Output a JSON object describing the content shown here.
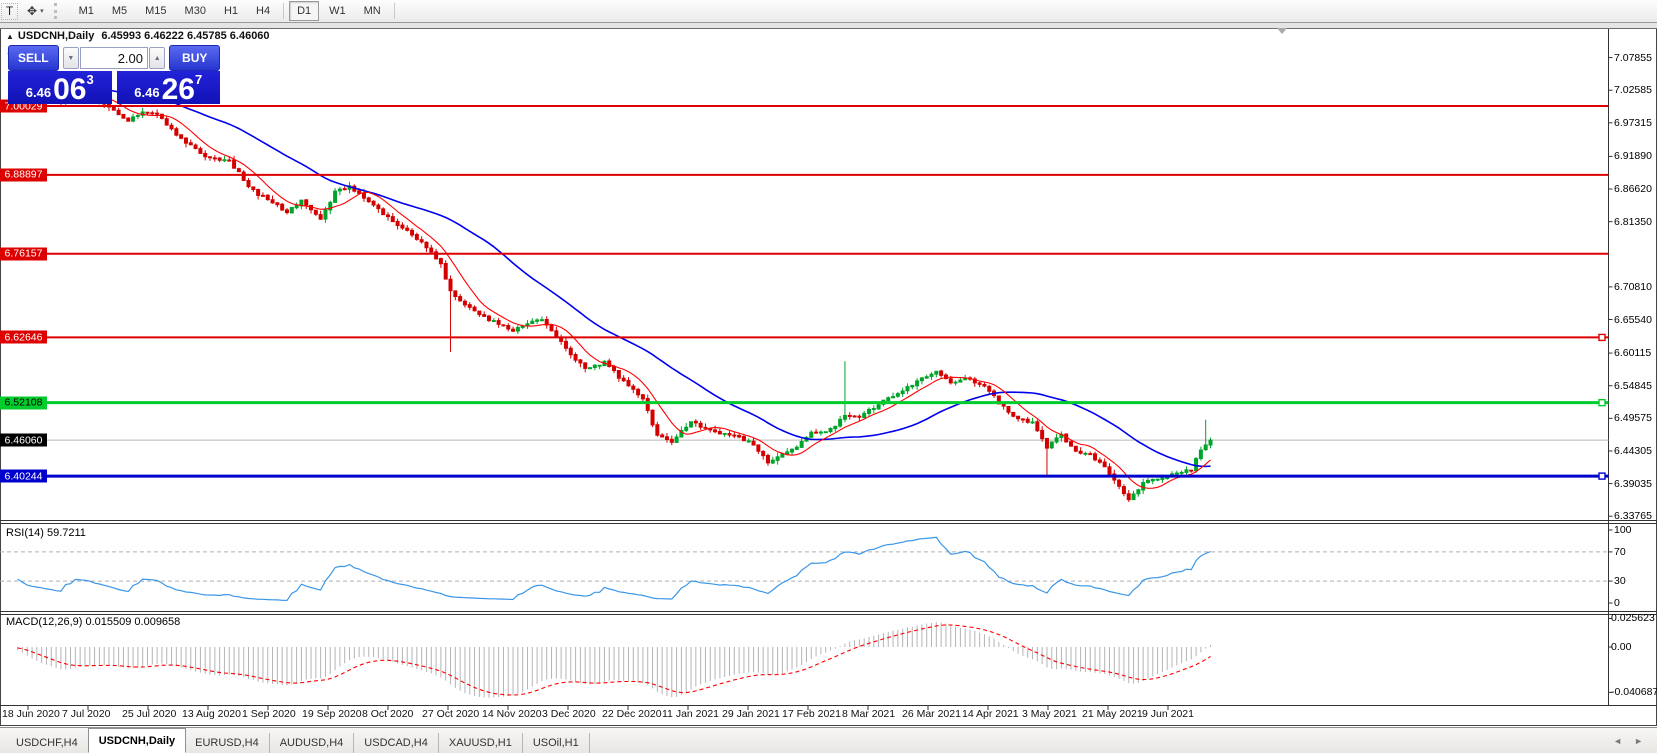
{
  "toolbar": {
    "text_tool_label": "T",
    "cursor_tool_glyph": "✥",
    "caret": "▾",
    "timeframes": [
      "M1",
      "M5",
      "M15",
      "M30",
      "H1",
      "H4",
      "D1",
      "W1",
      "MN"
    ],
    "active_timeframe": "D1"
  },
  "chart": {
    "title": "USDCNH,Daily",
    "ohlc_text": "6.45993 6.46222 6.45785 6.46060",
    "collapse_glyph": "▲"
  },
  "trade_panel": {
    "sell_label": "SELL",
    "buy_label": "BUY",
    "volume": "2.00",
    "spin_down_glyph": "▼",
    "spin_up_glyph": "▲",
    "sell_price_small": "6.46",
    "sell_price_big": "06",
    "sell_price_sup": "3",
    "buy_price_small": "6.46",
    "buy_price_big": "26",
    "buy_price_sup": "7"
  },
  "tabs": {
    "items": [
      "USDCHF,H4",
      "USDCNH,Daily",
      "EURUSD,H4",
      "AUDUSD,H4",
      "USDCAD,H4",
      "XAUUSD,H1",
      "USOil,H1"
    ],
    "active": "USDCNH,Daily",
    "scroll_left_glyph": "◄",
    "scroll_right_glyph": "►"
  },
  "chart_data": {
    "type": "candlestick",
    "symbol": "USDCNH",
    "timeframe": "Daily",
    "ohlc": {
      "open": 6.45993,
      "high": 6.46222,
      "low": 6.45785,
      "close": 6.4606
    },
    "price_axis_ticks": [
      7.07855,
      7.02585,
      6.97315,
      6.9189,
      6.8662,
      6.8135,
      6.7081,
      6.6554,
      6.60115,
      6.54845,
      6.49575,
      6.44305,
      6.39035,
      6.33765
    ],
    "hlines": [
      {
        "value": 7.00029,
        "color": "#dd0000",
        "text_color": "#ffffff",
        "width": 2,
        "handles": false
      },
      {
        "value": 6.88897,
        "color": "#dd0000",
        "text_color": "#ffffff",
        "width": 2,
        "handles": false
      },
      {
        "value": 6.76157,
        "color": "#dd0000",
        "text_color": "#ffffff",
        "width": 2,
        "handles": false
      },
      {
        "value": 6.62646,
        "color": "#dd0000",
        "text_color": "#ffffff",
        "width": 2,
        "handles": true
      },
      {
        "value": 6.52108,
        "color": "#00cc2c",
        "text_color": "#000000",
        "width": 3,
        "handles": true
      },
      {
        "value": 6.40244,
        "color": "#0000cc",
        "text_color": "#ffffff",
        "width": 3,
        "handles": true
      }
    ],
    "current_price": 6.4606,
    "dates": [
      "18 Jun 2020",
      "7 Jul 2020",
      "25 Jul 2020",
      "13 Aug 2020",
      "1 Sep 2020",
      "19 Sep 2020",
      "8 Oct 2020",
      "27 Oct 2020",
      "14 Nov 2020",
      "3 Dec 2020",
      "22 Dec 2020",
      "11 Jan 2021",
      "29 Jan 2021",
      "17 Feb 2021",
      "8 Mar 2021",
      "26 Mar 2021",
      "14 Apr 2021",
      "3 May 2021",
      "21 May 2021",
      "9 Jun 2021"
    ],
    "close_path": [
      [
        0,
        7.085
      ],
      [
        4,
        7.04
      ],
      [
        8,
        7.018
      ],
      [
        11,
        7.006
      ],
      [
        14,
        7.024
      ],
      [
        19,
        7.009
      ],
      [
        25,
        6.976
      ],
      [
        28,
        6.993
      ],
      [
        31,
        6.989
      ],
      [
        35,
        6.953
      ],
      [
        41,
        6.919
      ],
      [
        46,
        6.911
      ],
      [
        51,
        6.863
      ],
      [
        58,
        6.829
      ],
      [
        61,
        6.847
      ],
      [
        65,
        6.815
      ],
      [
        68,
        6.861
      ],
      [
        71,
        6.87
      ],
      [
        75,
        6.844
      ],
      [
        80,
        6.815
      ],
      [
        86,
        6.779
      ],
      [
        90,
        6.745
      ],
      [
        92,
        6.701
      ],
      [
        96,
        6.673
      ],
      [
        100,
        6.655
      ],
      [
        105,
        6.639
      ],
      [
        111,
        6.657
      ],
      [
        116,
        6.609
      ],
      [
        120,
        6.575
      ],
      [
        124,
        6.587
      ],
      [
        128,
        6.554
      ],
      [
        132,
        6.529
      ],
      [
        135,
        6.466
      ],
      [
        138,
        6.459
      ],
      [
        142,
        6.491
      ],
      [
        146,
        6.475
      ],
      [
        150,
        6.469
      ],
      [
        154,
        6.459
      ],
      [
        158,
        6.425
      ],
      [
        163,
        6.445
      ],
      [
        167,
        6.471
      ],
      [
        171,
        6.477
      ],
      [
        174,
        6.501
      ],
      [
        177,
        6.499
      ],
      [
        181,
        6.519
      ],
      [
        185,
        6.537
      ],
      [
        190,
        6.559
      ],
      [
        193,
        6.571
      ],
      [
        196,
        6.554
      ],
      [
        199,
        6.561
      ],
      [
        203,
        6.549
      ],
      [
        206,
        6.521
      ],
      [
        209,
        6.499
      ],
      [
        213,
        6.489
      ],
      [
        216,
        6.449
      ],
      [
        219,
        6.469
      ],
      [
        222,
        6.441
      ],
      [
        225,
        6.437
      ],
      [
        228,
        6.419
      ],
      [
        231,
        6.385
      ],
      [
        233,
        6.363
      ],
      [
        236,
        6.391
      ],
      [
        240,
        6.401
      ],
      [
        243,
        6.405
      ],
      [
        246,
        6.413
      ],
      [
        248,
        6.445
      ],
      [
        250,
        6.4606
      ]
    ],
    "special_wicks": [
      {
        "i": 92,
        "low": 6.603
      },
      {
        "i": 174,
        "high": 6.588
      },
      {
        "i": 216,
        "low": 6.403
      },
      {
        "i": 249,
        "high": 6.4935
      }
    ],
    "indicators": {
      "rsi": {
        "label": "RSI(14) 59.7211",
        "period": 14,
        "value": 59.7211,
        "axis": [
          100,
          70,
          30,
          0
        ],
        "guides": [
          70,
          30
        ]
      },
      "macd": {
        "label": "MACD(12,26,9) 0.015509 0.009658",
        "macd_value": 0.015509,
        "signal_value": 0.009658,
        "axis": [
          {
            "v": 0.025623,
            "t": "0.025623"
          },
          {
            "v": 0,
            "t": "0.00"
          },
          {
            "v": -0.040687,
            "t": "-0.040687"
          }
        ]
      }
    },
    "colors": {
      "up": "#00a42a",
      "down": "#d40000",
      "ma_fast": "#ff0000",
      "ma_slow": "#0000ee",
      "rsi_line": "#3a96e8",
      "macd_bars": "#b4b4b4",
      "macd_signal": "#ff0000",
      "current_line": "#b8b8b8",
      "guide_dash": "#b0b0b0"
    }
  }
}
